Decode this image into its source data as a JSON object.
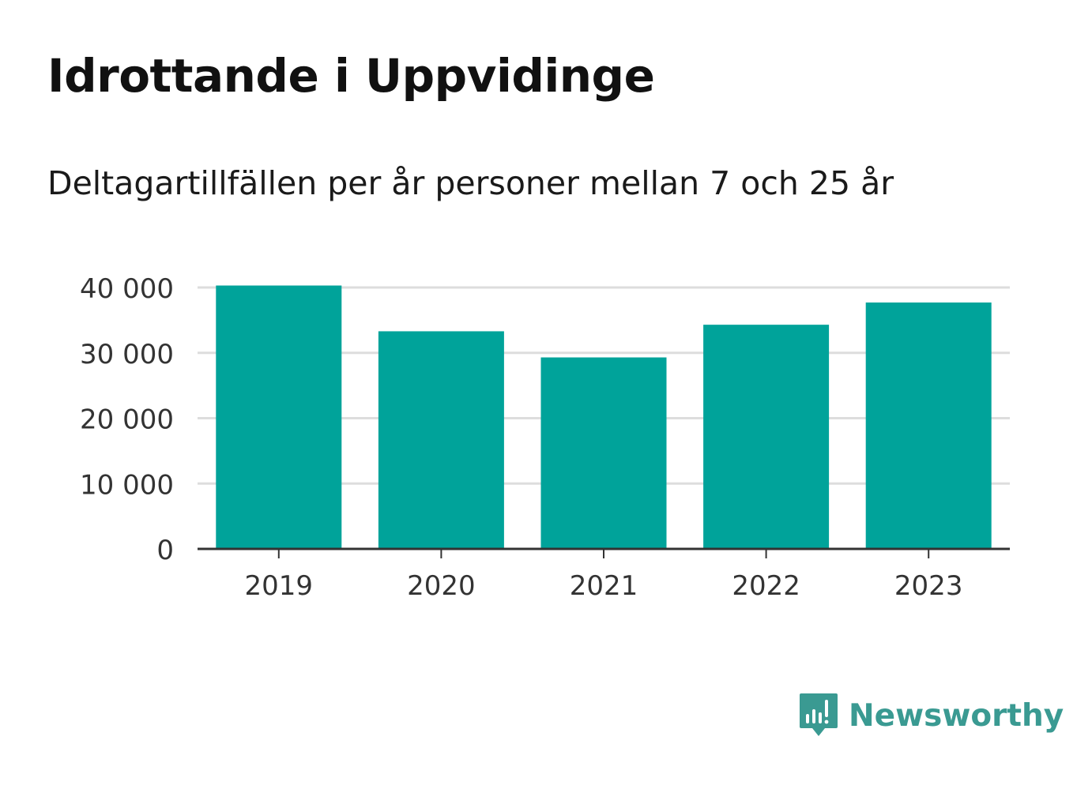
{
  "header": {
    "title": "Idrottande i Uppvidinge",
    "subtitle": "Deltagartillfällen per år personer mellan 7 och 25 år"
  },
  "brand": {
    "name": "Newsworthy",
    "icon": "newsworthy-logo-icon",
    "color": "#3a9a92"
  },
  "chart_data": {
    "type": "bar",
    "categories": [
      "2019",
      "2020",
      "2021",
      "2022",
      "2023"
    ],
    "values": [
      40300,
      33300,
      29300,
      34300,
      37700
    ],
    "ylim": [
      0,
      40000
    ],
    "yticks": [
      0,
      10000,
      20000,
      30000,
      40000
    ],
    "ytick_labels": [
      "0",
      "10 000",
      "20 000",
      "30 000",
      "40 000"
    ],
    "grid": true,
    "bar_color": "#00a39a",
    "grid_color": "#dddddd",
    "axis_color": "#333333"
  }
}
